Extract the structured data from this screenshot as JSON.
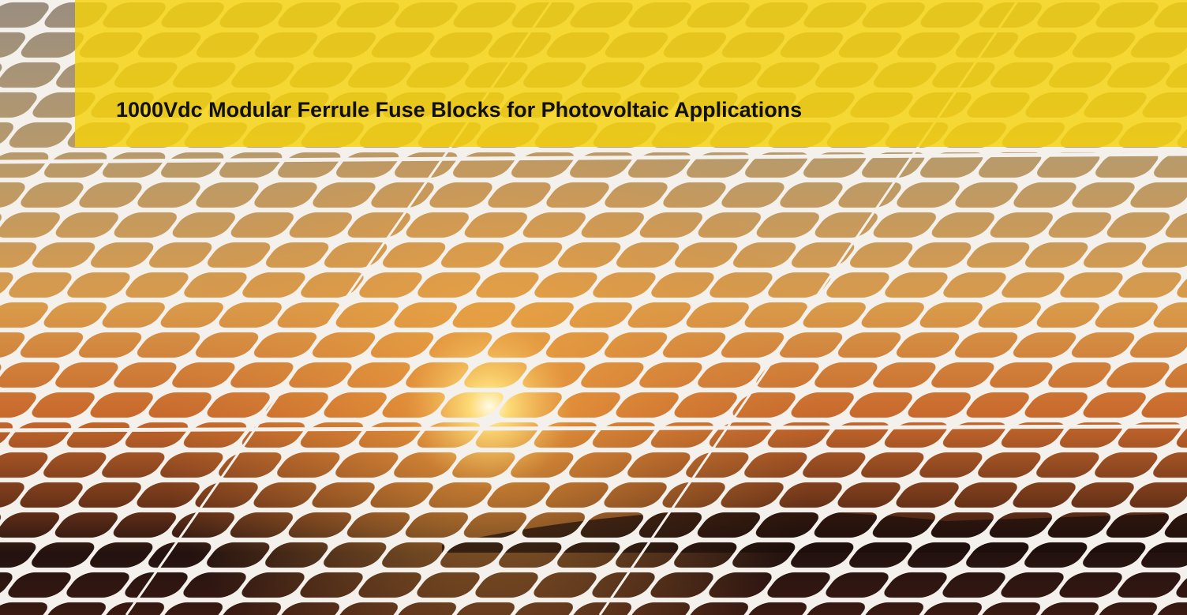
{
  "header": {
    "title": "1000Vdc Modular Ferrule Fuse Blocks for Photovoltaic Applications"
  }
}
